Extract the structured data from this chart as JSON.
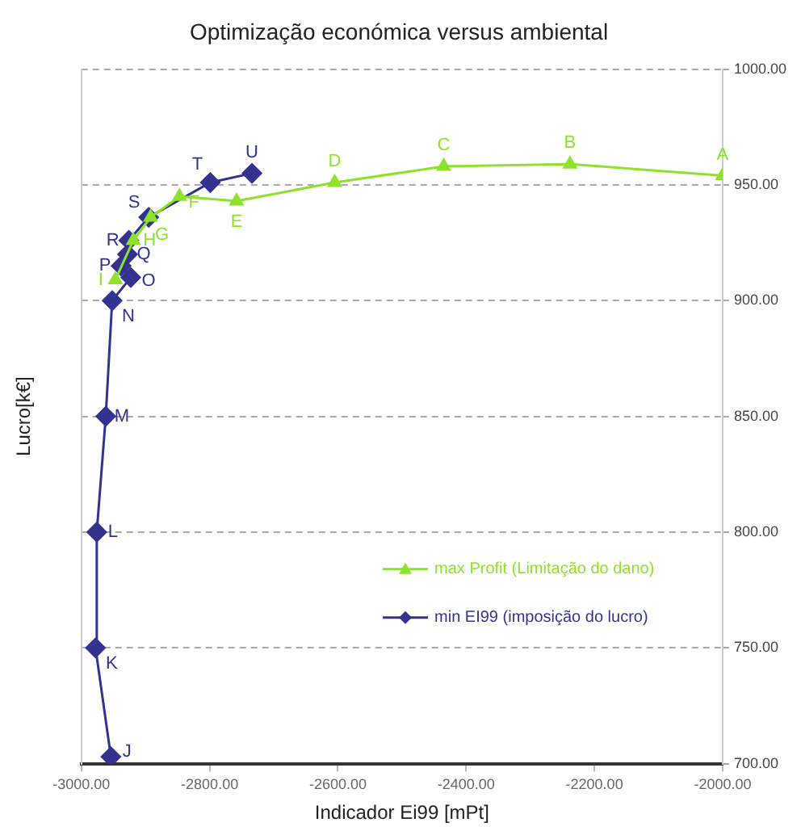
{
  "chart_data": {
    "type": "line",
    "title": "Optimização económica versus ambiental",
    "xlabel": "Indicador Ei99 [mPt]",
    "ylabel": "Lucro[k€]",
    "series": [
      {
        "name": "max Profit (Limitação do dano)",
        "color": "#8fe22a",
        "marker": "triangle",
        "x": [
          -2000,
          -2238,
          -2435,
          -2605,
          -2758,
          -2847,
          -2892,
          -2919,
          -2947
        ],
        "values": [
          954,
          959,
          958,
          951,
          943,
          945,
          936,
          926,
          909
        ]
      },
      {
        "name": "min EI99 (imposição do lucro)",
        "color": "#33338f",
        "marker": "diamond",
        "x": [
          -2954,
          -2978,
          -2976,
          -2962,
          -2952,
          -2923,
          -2938,
          -2928,
          -2926,
          -2895,
          -2799,
          -2734
        ],
        "values": [
          703,
          750,
          800,
          850,
          900,
          910,
          915,
          920,
          926,
          936,
          951,
          955
        ]
      }
    ],
    "xlim": [
      -3000,
      -2000
    ],
    "xticks": [
      {
        "value": -3000,
        "label": "-3000.00"
      },
      {
        "value": -2800,
        "label": "-2800.00"
      },
      {
        "value": -2600,
        "label": "-2600.00"
      },
      {
        "value": -2400,
        "label": "-2400.00"
      },
      {
        "value": -2200,
        "label": "-2200.00"
      },
      {
        "value": -2000,
        "label": "-2000.00"
      }
    ],
    "ylim": [
      700,
      1000
    ],
    "yticks": [
      {
        "value": 700,
        "label": "700.00"
      },
      {
        "value": 750,
        "label": "750.00"
      },
      {
        "value": 800,
        "label": "800.00"
      },
      {
        "value": 850,
        "label": "850.00"
      },
      {
        "value": 900,
        "label": "900.00"
      },
      {
        "value": 950,
        "label": "950.00"
      },
      {
        "value": 1000,
        "label": "1000.00"
      }
    ],
    "grid": "y",
    "legend": "right",
    "line_style": "solid",
    "annotations": [
      {
        "text": "A",
        "x": -2000,
        "y": 954
      },
      {
        "text": "B",
        "x": -2238,
        "y": 959
      },
      {
        "text": "C",
        "x": -2435,
        "y": 958
      },
      {
        "text": "D",
        "x": -2605,
        "y": 951
      },
      {
        "text": "E",
        "x": -2758,
        "y": 943
      },
      {
        "text": "F",
        "x": -2847,
        "y": 945
      },
      {
        "text": "G",
        "x": -2892,
        "y": 936
      },
      {
        "text": "H",
        "x": -2919,
        "y": 926
      },
      {
        "text": "I",
        "x": -2947,
        "y": 909
      },
      {
        "text": "J",
        "x": -2954,
        "y": 703
      },
      {
        "text": "K",
        "x": -2978,
        "y": 750
      },
      {
        "text": "L",
        "x": -2976,
        "y": 800
      },
      {
        "text": "M",
        "x": -2962,
        "y": 850
      },
      {
        "text": "N",
        "x": -2952,
        "y": 900
      },
      {
        "text": "O",
        "x": -2923,
        "y": 910
      },
      {
        "text": "P",
        "x": -2938,
        "y": 915
      },
      {
        "text": "Q",
        "x": -2928,
        "y": 920
      },
      {
        "text": "R",
        "x": -2926,
        "y": 926
      },
      {
        "text": "S",
        "x": -2895,
        "y": 936
      },
      {
        "text": "T",
        "x": -2799,
        "y": 951
      },
      {
        "text": "U",
        "x": -2734,
        "y": 955
      }
    ]
  }
}
